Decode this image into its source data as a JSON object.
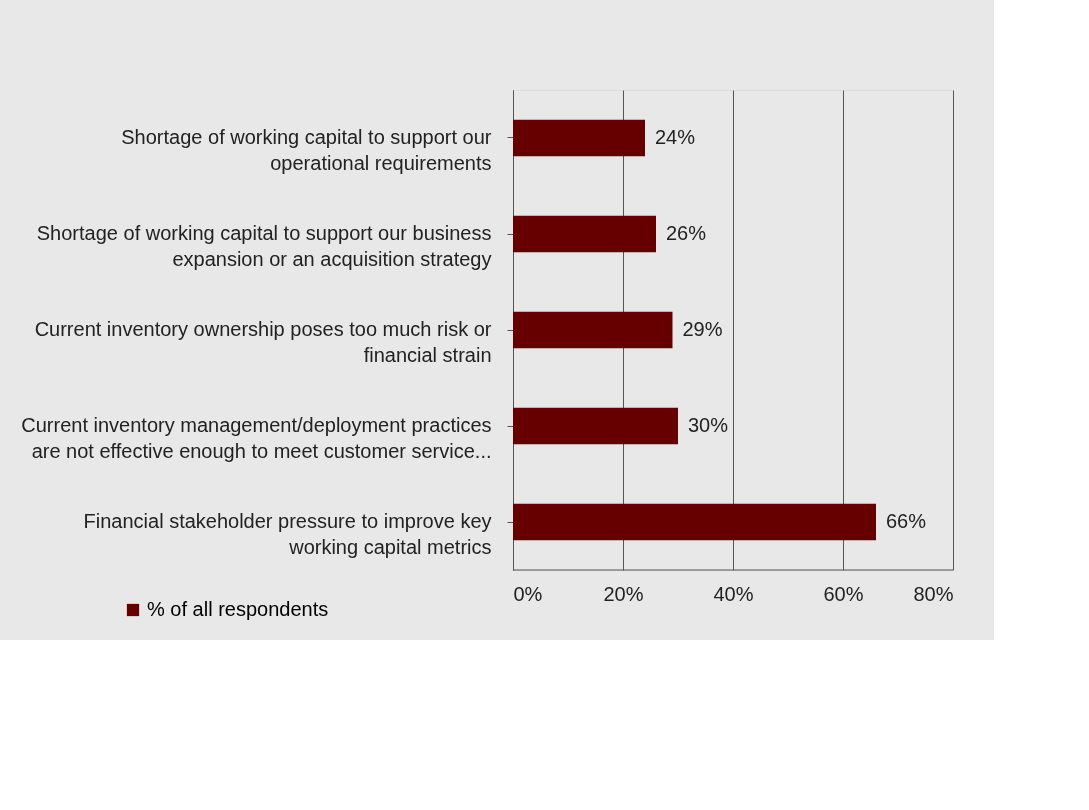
{
  "chart_data": {
    "type": "bar",
    "orientation": "horizontal",
    "categories": [
      "Shortage of working capital to support our operational requirements",
      "Shortage of working capital to support our business expansion or an acquisition strategy",
      "Current inventory ownership poses too much risk or financial strain",
      "Current inventory management/deployment practices are not effective enough to meet customer service...",
      "Financial stakeholder pressure to improve key working capital metrics"
    ],
    "series": [
      {
        "name": "% of all respondents",
        "color": "#660000",
        "values": [
          24,
          26,
          29,
          30,
          66
        ],
        "value_labels": [
          "24%",
          "26%",
          "29%",
          "30%",
          "66%"
        ]
      }
    ],
    "xlim": [
      0,
      80
    ],
    "xticks": [
      {
        "value": 0,
        "label": "0%"
      },
      {
        "value": 20,
        "label": "20%"
      },
      {
        "value": 40,
        "label": "40%"
      },
      {
        "value": 60,
        "label": "60%"
      },
      {
        "value": 80,
        "label": "80%"
      }
    ],
    "grid": "x",
    "legend": "bottom left"
  }
}
